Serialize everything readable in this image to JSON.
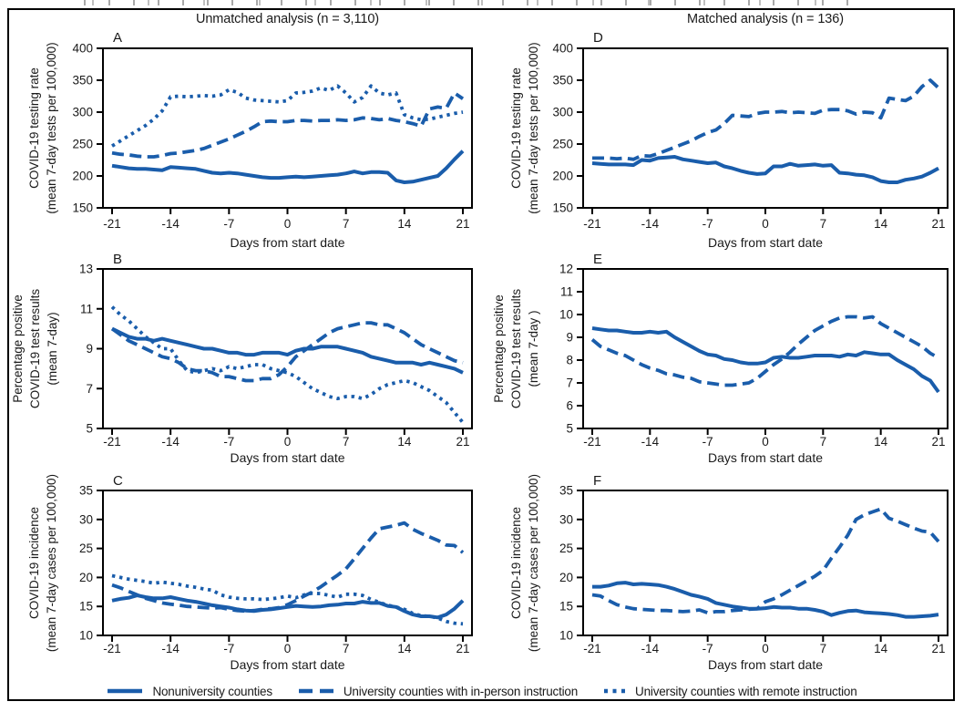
{
  "header": {
    "left_title": "Unmatched analysis (n = 3,110)",
    "right_title": "Matched analysis (n = 136)"
  },
  "colors": {
    "line": "#1a5dab",
    "text": "#1a1a1a",
    "frame": "#000000"
  },
  "legend": {
    "items": [
      {
        "label": "Nonuniversity counties",
        "style": "solid"
      },
      {
        "label": "University counties with in-person instruction",
        "style": "dashed"
      },
      {
        "label": "University counties with remote instruction",
        "style": "dotted"
      }
    ]
  },
  "x_days": [
    -21,
    -20,
    -19,
    -18,
    -17,
    -16,
    -15,
    -14,
    -13,
    -12,
    -11,
    -10,
    -9,
    -8,
    -7,
    -6,
    -5,
    -4,
    -3,
    -2,
    -1,
    0,
    1,
    2,
    3,
    4,
    5,
    6,
    7,
    8,
    9,
    10,
    11,
    12,
    13,
    14,
    15,
    16,
    17,
    18,
    19,
    20,
    21
  ],
  "chart_data": [
    {
      "panel": "A",
      "type": "line",
      "ylabel_lines": [
        "COVID-19 testing rate",
        "(mean 7-day tests per 100,000)"
      ],
      "xlabel": "Days from start date",
      "ylim": [
        150,
        400
      ],
      "yticks": [
        150,
        200,
        250,
        300,
        350,
        400
      ],
      "xticks": [
        -21,
        -14,
        -7,
        0,
        7,
        14,
        21
      ],
      "series": [
        {
          "name": "Nonuniversity counties",
          "style": "solid",
          "values": [
            216,
            214,
            212,
            211,
            211,
            210,
            209,
            214,
            213,
            212,
            211,
            208,
            205,
            204,
            205,
            204,
            202,
            200,
            198,
            197,
            197,
            198,
            199,
            198,
            199,
            200,
            201,
            202,
            204,
            207,
            204,
            206,
            206,
            205,
            193,
            190,
            191,
            194,
            197,
            200,
            212,
            226,
            239
          ]
        },
        {
          "name": "University counties with in-person instruction",
          "style": "dashed",
          "values": [
            236,
            234,
            233,
            231,
            230,
            230,
            232,
            235,
            236,
            238,
            240,
            243,
            248,
            253,
            258,
            264,
            270,
            277,
            285,
            286,
            285,
            285,
            287,
            287,
            286,
            287,
            287,
            288,
            287,
            288,
            291,
            290,
            288,
            290,
            287,
            285,
            282,
            278,
            305,
            308,
            306,
            330,
            321
          ]
        },
        {
          "name": "University counties with remote instruction",
          "style": "dotted",
          "values": [
            247,
            255,
            263,
            271,
            279,
            289,
            302,
            324,
            325,
            324,
            325,
            326,
            325,
            327,
            335,
            331,
            322,
            319,
            318,
            317,
            316,
            318,
            330,
            331,
            333,
            338,
            334,
            341,
            330,
            316,
            323,
            341,
            330,
            327,
            330,
            296,
            291,
            288,
            289,
            292,
            295,
            298,
            300
          ]
        }
      ]
    },
    {
      "panel": "D",
      "type": "line",
      "ylabel_lines": [
        "COVID-19 testing rate",
        "(mean 7-day tests per 100,000)"
      ],
      "xlabel": "Days from start date",
      "ylim": [
        150,
        400
      ],
      "yticks": [
        150,
        200,
        250,
        300,
        350,
        400
      ],
      "xticks": [
        -21,
        -14,
        -7,
        0,
        7,
        14,
        21
      ],
      "series": [
        {
          "name": "Nonuniversity counties",
          "style": "solid",
          "values": [
            220,
            219,
            218,
            218,
            218,
            217,
            225,
            224,
            228,
            229,
            230,
            226,
            224,
            222,
            220,
            221,
            215,
            212,
            208,
            205,
            203,
            204,
            215,
            215,
            219,
            216,
            217,
            218,
            216,
            217,
            205,
            204,
            202,
            201,
            198,
            192,
            190,
            190,
            194,
            196,
            199,
            205,
            212
          ]
        },
        {
          "name": "University counties with in-person instruction",
          "style": "dashed",
          "values": [
            228,
            228,
            228,
            227,
            228,
            226,
            232,
            231,
            235,
            240,
            245,
            250,
            255,
            262,
            268,
            272,
            282,
            295,
            294,
            293,
            298,
            300,
            300,
            301,
            299,
            300,
            299,
            298,
            303,
            304,
            304,
            302,
            297,
            300,
            299,
            291,
            322,
            320,
            318,
            325,
            340,
            350,
            338
          ]
        }
      ]
    },
    {
      "panel": "B",
      "type": "line",
      "ylabel_lines": [
        "Percentage positive",
        "COVID-19 test results",
        "(mean 7-day)"
      ],
      "xlabel": "Days from start date",
      "ylim": [
        5,
        13
      ],
      "yticks": [
        5,
        7,
        9,
        11,
        13
      ],
      "xticks": [
        -21,
        -14,
        -7,
        0,
        7,
        14,
        21
      ],
      "series": [
        {
          "name": "Nonuniversity counties",
          "style": "solid",
          "values": [
            10.0,
            9.8,
            9.6,
            9.5,
            9.5,
            9.4,
            9.5,
            9.4,
            9.3,
            9.2,
            9.1,
            9.0,
            9.0,
            8.9,
            8.8,
            8.8,
            8.7,
            8.7,
            8.8,
            8.8,
            8.8,
            8.7,
            8.9,
            9.0,
            9.0,
            9.1,
            9.1,
            9.1,
            9.0,
            8.9,
            8.8,
            8.6,
            8.5,
            8.4,
            8.3,
            8.3,
            8.3,
            8.2,
            8.3,
            8.2,
            8.1,
            8.0,
            7.8
          ]
        },
        {
          "name": "University counties with in-person instruction",
          "style": "dashed",
          "values": [
            10.0,
            9.7,
            9.4,
            9.2,
            9.0,
            8.8,
            8.6,
            8.5,
            8.3,
            8.0,
            7.9,
            7.9,
            7.8,
            7.6,
            7.6,
            7.5,
            7.4,
            7.4,
            7.5,
            7.5,
            7.7,
            8.1,
            8.6,
            8.9,
            9.2,
            9.5,
            9.8,
            10.0,
            10.1,
            10.2,
            10.3,
            10.3,
            10.2,
            10.2,
            10.0,
            9.8,
            9.5,
            9.2,
            9.0,
            8.8,
            8.6,
            8.4,
            8.3
          ]
        },
        {
          "name": "University counties with remote instruction",
          "style": "dotted",
          "values": [
            11.1,
            10.7,
            10.4,
            10.0,
            9.6,
            9.3,
            9.0,
            9.0,
            8.4,
            7.9,
            7.8,
            7.9,
            8.0,
            7.9,
            8.1,
            8.0,
            8.1,
            8.2,
            8.2,
            8.0,
            7.9,
            7.8,
            7.6,
            7.3,
            7.0,
            6.8,
            6.6,
            6.5,
            6.6,
            6.6,
            6.5,
            6.7,
            7.0,
            7.2,
            7.3,
            7.4,
            7.3,
            7.1,
            6.9,
            6.6,
            6.3,
            5.8,
            5.3
          ]
        }
      ]
    },
    {
      "panel": "E",
      "type": "line",
      "ylabel_lines": [
        "Percentage positive",
        "COVID-19 test results",
        "(mean 7-day )"
      ],
      "xlabel": "Days from start date",
      "ylim": [
        5,
        12
      ],
      "yticks": [
        5,
        6,
        7,
        8,
        9,
        10,
        11,
        12
      ],
      "xticks": [
        -21,
        -14,
        -7,
        0,
        7,
        14,
        21
      ],
      "series": [
        {
          "name": "Nonuniversity counties",
          "style": "solid",
          "values": [
            9.4,
            9.35,
            9.3,
            9.3,
            9.25,
            9.2,
            9.2,
            9.25,
            9.2,
            9.25,
            9.0,
            8.8,
            8.6,
            8.4,
            8.25,
            8.2,
            8.05,
            8.0,
            7.9,
            7.85,
            7.85,
            7.9,
            8.1,
            8.15,
            8.1,
            8.1,
            8.15,
            8.2,
            8.2,
            8.2,
            8.15,
            8.25,
            8.2,
            8.35,
            8.3,
            8.25,
            8.25,
            8.0,
            7.8,
            7.6,
            7.3,
            7.1,
            6.6
          ]
        },
        {
          "name": "University counties with in-person instruction",
          "style": "dashed",
          "values": [
            8.9,
            8.6,
            8.45,
            8.3,
            8.2,
            8.0,
            7.8,
            7.65,
            7.55,
            7.4,
            7.35,
            7.25,
            7.2,
            7.05,
            7.0,
            6.95,
            6.9,
            6.9,
            6.95,
            7.0,
            7.2,
            7.5,
            7.8,
            8.05,
            8.35,
            8.7,
            9.0,
            9.3,
            9.5,
            9.7,
            9.85,
            9.9,
            9.9,
            9.85,
            9.9,
            9.6,
            9.4,
            9.2,
            9.0,
            8.8,
            8.6,
            8.3,
            8.1
          ]
        }
      ]
    },
    {
      "panel": "C",
      "type": "line",
      "ylabel_lines": [
        "COVID-19 incidence",
        "(mean 7-day cases per 100,000)"
      ],
      "xlabel": "Days from start date",
      "ylim": [
        10,
        35
      ],
      "yticks": [
        10,
        15,
        20,
        25,
        30,
        35
      ],
      "xticks": [
        -21,
        -14,
        -7,
        0,
        7,
        14,
        21
      ],
      "series": [
        {
          "name": "Nonuniversity counties",
          "style": "solid",
          "values": [
            16.0,
            16.3,
            16.5,
            16.9,
            16.6,
            16.4,
            16.4,
            16.6,
            16.3,
            16.0,
            15.8,
            15.5,
            15.2,
            15.0,
            14.8,
            14.5,
            14.3,
            14.2,
            14.4,
            14.5,
            14.7,
            14.9,
            15.1,
            15.0,
            14.9,
            15.0,
            15.2,
            15.3,
            15.5,
            15.5,
            15.8,
            15.6,
            15.6,
            15.1,
            14.9,
            14.2,
            13.6,
            13.3,
            13.3,
            13.1,
            13.6,
            14.6,
            16.0
          ]
        },
        {
          "name": "University counties with in-person instruction",
          "style": "dashed",
          "values": [
            18.7,
            18.2,
            17.6,
            17.0,
            16.4,
            16.0,
            15.6,
            15.4,
            15.2,
            15.0,
            14.9,
            14.8,
            14.7,
            14.8,
            14.5,
            14.3,
            14.2,
            14.3,
            14.5,
            14.6,
            14.8,
            15.3,
            16.0,
            16.8,
            17.5,
            18.4,
            19.4,
            20.4,
            21.5,
            23.2,
            25.0,
            26.8,
            28.4,
            28.7,
            29.0,
            29.4,
            28.3,
            27.6,
            27.0,
            26.4,
            25.6,
            25.5,
            24.3
          ]
        },
        {
          "name": "University counties with remote instruction",
          "style": "dotted",
          "values": [
            20.3,
            20.0,
            19.7,
            19.5,
            19.3,
            19.0,
            19.2,
            19.0,
            18.8,
            18.5,
            18.3,
            18.0,
            17.8,
            17.0,
            16.6,
            16.4,
            16.3,
            16.3,
            16.2,
            16.3,
            16.5,
            16.8,
            16.5,
            17.0,
            17.3,
            17.2,
            16.9,
            16.6,
            17.1,
            17.1,
            16.9,
            16.2,
            15.7,
            15.2,
            14.9,
            14.5,
            13.8,
            13.4,
            13.3,
            13.0,
            12.4,
            12.1,
            12.0
          ]
        }
      ]
    },
    {
      "panel": "F",
      "type": "line",
      "ylabel_lines": [
        "COVID-19 incidence",
        "(mean 7-day cases per 100,000)"
      ],
      "xlabel": "Days from start date",
      "ylim": [
        10,
        35
      ],
      "yticks": [
        10,
        15,
        20,
        25,
        30,
        35
      ],
      "xticks": [
        -21,
        -14,
        -7,
        0,
        7,
        14,
        21
      ],
      "series": [
        {
          "name": "Nonuniversity counties",
          "style": "solid",
          "values": [
            18.4,
            18.4,
            18.6,
            19.0,
            19.1,
            18.8,
            18.9,
            18.8,
            18.7,
            18.4,
            18.0,
            17.5,
            17.0,
            16.7,
            16.3,
            15.6,
            15.3,
            15.0,
            14.8,
            14.6,
            14.6,
            14.7,
            14.9,
            14.8,
            14.8,
            14.6,
            14.6,
            14.4,
            14.1,
            13.5,
            13.9,
            14.2,
            14.3,
            14.0,
            13.9,
            13.8,
            13.7,
            13.5,
            13.2,
            13.2,
            13.3,
            13.4,
            13.6
          ]
        },
        {
          "name": "University counties with in-person instruction",
          "style": "dashed",
          "values": [
            17.0,
            16.8,
            16.0,
            15.3,
            14.9,
            14.6,
            14.5,
            14.4,
            14.3,
            14.3,
            14.2,
            14.1,
            14.2,
            14.4,
            13.9,
            14.1,
            14.1,
            14.3,
            14.4,
            14.5,
            14.6,
            15.8,
            16.3,
            17.0,
            17.8,
            18.6,
            19.4,
            20.2,
            21.2,
            23.3,
            25.2,
            27.3,
            30.0,
            30.8,
            31.3,
            31.8,
            30.2,
            29.7,
            29.1,
            28.5,
            28.0,
            27.8,
            26.2
          ]
        }
      ]
    }
  ]
}
